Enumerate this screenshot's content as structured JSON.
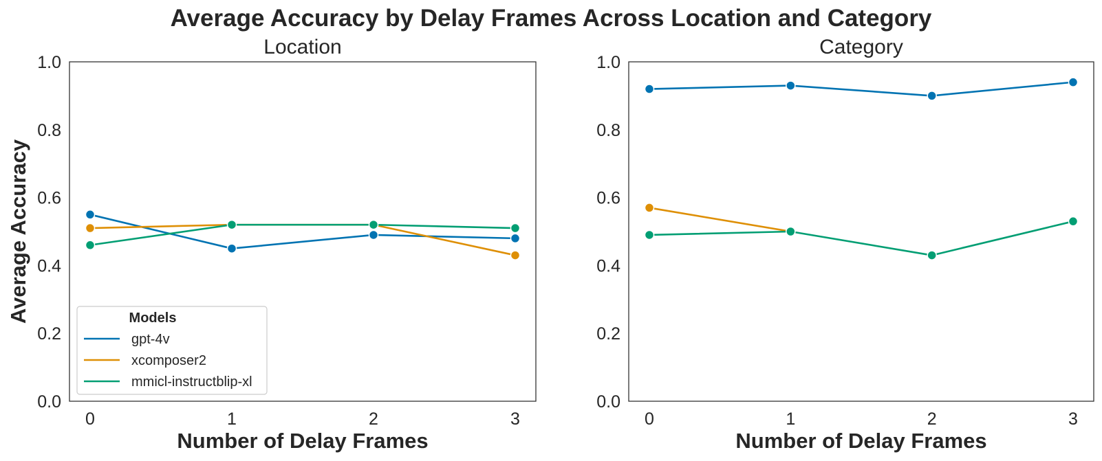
{
  "title": "Average Accuracy by Delay Frames Across Location and Category",
  "chart_data": [
    {
      "type": "line",
      "title": "Location",
      "xlabel": "Number of Delay Frames",
      "ylabel": "Average Accuracy",
      "x": [
        0,
        1,
        2,
        3
      ],
      "xticks": [
        "0",
        "1",
        "2",
        "3"
      ],
      "ylim": [
        0.0,
        1.0
      ],
      "yticks": [
        "0.0",
        "0.2",
        "0.4",
        "0.6",
        "0.8",
        "1.0"
      ],
      "grid": false,
      "legend": {
        "title": "Models",
        "position": "lower-left"
      },
      "series": [
        {
          "name": "gpt-4v",
          "color": "#0173b2",
          "values": [
            0.55,
            0.45,
            0.49,
            0.48
          ]
        },
        {
          "name": "xcomposer2",
          "color": "#de8f05",
          "values": [
            0.51,
            0.52,
            0.52,
            0.43
          ]
        },
        {
          "name": "mmicl-instructblip-xl",
          "color": "#029e73",
          "values": [
            0.46,
            0.52,
            0.52,
            0.51
          ]
        }
      ]
    },
    {
      "type": "line",
      "title": "Category",
      "xlabel": "Number of Delay Frames",
      "ylabel": "",
      "x": [
        0,
        1,
        2,
        3
      ],
      "xticks": [
        "0",
        "1",
        "2",
        "3"
      ],
      "ylim": [
        0.0,
        1.0
      ],
      "yticks": [
        "0.0",
        "0.2",
        "0.4",
        "0.6",
        "0.8",
        "1.0"
      ],
      "grid": false,
      "series": [
        {
          "name": "gpt-4v",
          "color": "#0173b2",
          "values": [
            0.92,
            0.93,
            0.9,
            0.94
          ]
        },
        {
          "name": "xcomposer2",
          "color": "#de8f05",
          "values": [
            0.57,
            0.5,
            null,
            null
          ]
        },
        {
          "name": "mmicl-instructblip-xl",
          "color": "#029e73",
          "values": [
            0.49,
            0.5,
            0.43,
            0.53
          ]
        }
      ]
    }
  ]
}
